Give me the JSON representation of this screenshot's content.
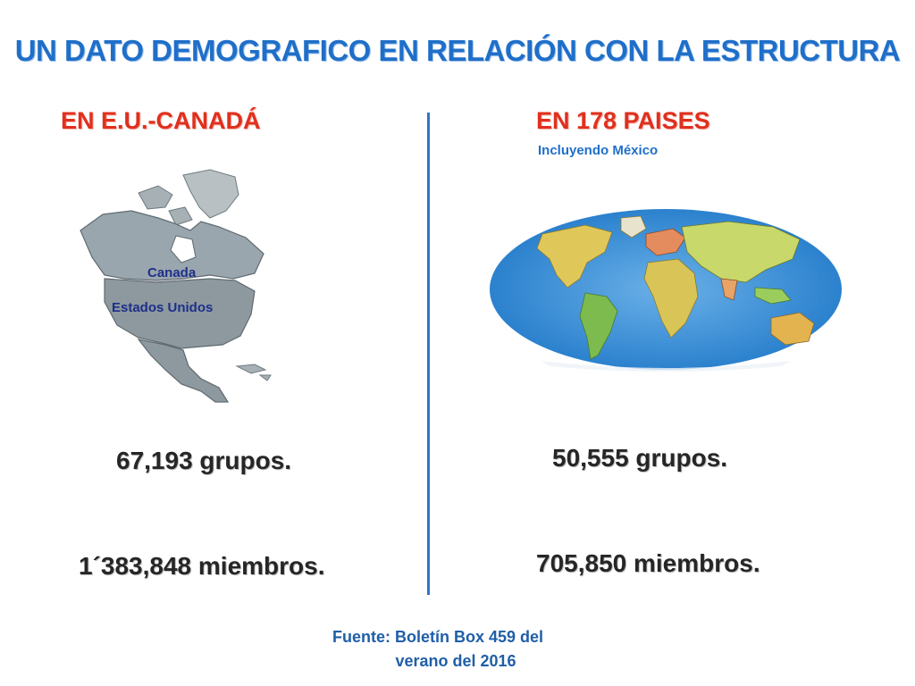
{
  "slide": {
    "title": "UN DATO DEMOGRAFICO EN RELACIÓN CON LA ESTRUCTURA"
  },
  "left": {
    "heading": "EN E.U.-CANADÁ",
    "map_labels": {
      "canada": "Canada",
      "usa": "Estados Unidos"
    },
    "groups": "67,193 grupos.",
    "members": "1´383,848 miembros."
  },
  "right": {
    "heading": "EN 178 PAISES",
    "subheading": "Incluyendo México",
    "groups": "50,555 grupos.",
    "members": "705,850 miembros."
  },
  "footer": {
    "source_line1": "Fuente: Boletín Box 459 del",
    "source_line2": "verano del 2016"
  },
  "colors": {
    "title": "#1f6fc9",
    "heading": "#e0301e",
    "divider": "#2f75c8",
    "stat": "#262626",
    "source": "#1f5fa8"
  }
}
